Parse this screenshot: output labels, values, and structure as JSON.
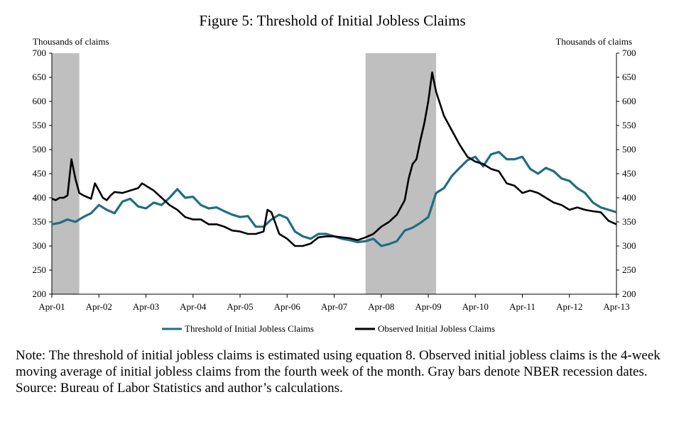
{
  "chart_data": {
    "type": "line",
    "title": "Figure 5: Threshold of Initial Jobless Claims",
    "ylabel_left": "Thousands of claims",
    "ylabel_right": "Thousands of claims",
    "ylim": [
      200,
      700
    ],
    "yticks": [
      200,
      250,
      300,
      350,
      400,
      450,
      500,
      550,
      600,
      650,
      700
    ],
    "xlim": [
      "2001-04",
      "2013-04"
    ],
    "xticks": [
      "Apr-01",
      "Apr-02",
      "Apr-03",
      "Apr-04",
      "Apr-05",
      "Apr-06",
      "Apr-07",
      "Apr-08",
      "Apr-09",
      "Apr-10",
      "Apr-11",
      "Apr-12",
      "Apr-13"
    ],
    "recessions": [
      {
        "start": "2001-04",
        "end": "2001-11"
      },
      {
        "start": "2007-12",
        "end": "2009-06"
      }
    ],
    "legend_position": "bottom",
    "series": [
      {
        "name": "Threshold of Initial Jobless Claims",
        "color": "#1f6e84",
        "x": [
          "2001-04",
          "2001-06",
          "2001-08",
          "2001-10",
          "2001-12",
          "2002-02",
          "2002-04",
          "2002-06",
          "2002-08",
          "2002-10",
          "2002-12",
          "2003-02",
          "2003-04",
          "2003-06",
          "2003-08",
          "2003-10",
          "2003-12",
          "2004-02",
          "2004-04",
          "2004-06",
          "2004-08",
          "2004-10",
          "2004-12",
          "2005-02",
          "2005-04",
          "2005-06",
          "2005-08",
          "2005-10",
          "2005-12",
          "2006-02",
          "2006-04",
          "2006-06",
          "2006-08",
          "2006-10",
          "2006-12",
          "2007-02",
          "2007-04",
          "2007-06",
          "2007-08",
          "2007-10",
          "2007-12",
          "2008-02",
          "2008-04",
          "2008-06",
          "2008-08",
          "2008-10",
          "2008-12",
          "2009-02",
          "2009-04",
          "2009-06",
          "2009-08",
          "2009-10",
          "2009-12",
          "2010-02",
          "2010-04",
          "2010-06",
          "2010-08",
          "2010-10",
          "2010-12",
          "2011-02",
          "2011-04",
          "2011-06",
          "2011-08",
          "2011-10",
          "2011-12",
          "2012-02",
          "2012-04",
          "2012-06",
          "2012-08",
          "2012-10",
          "2012-12",
          "2013-02",
          "2013-04"
        ],
        "values": [
          345,
          348,
          355,
          350,
          360,
          368,
          385,
          375,
          368,
          392,
          398,
          382,
          378,
          390,
          385,
          400,
          418,
          400,
          402,
          385,
          378,
          380,
          372,
          365,
          360,
          362,
          340,
          340,
          355,
          365,
          358,
          330,
          320,
          315,
          325,
          325,
          320,
          315,
          312,
          308,
          310,
          315,
          300,
          304,
          310,
          332,
          338,
          348,
          360,
          410,
          420,
          445,
          462,
          478,
          485,
          465,
          490,
          495,
          480,
          480,
          485,
          460,
          450,
          462,
          455,
          440,
          435,
          420,
          410,
          390,
          380,
          375,
          370
        ]
      },
      {
        "name": "Observed Initial Jobless Claims",
        "color": "#000000",
        "x": [
          "2001-04",
          "2001-05",
          "2001-06",
          "2001-07",
          "2001-08",
          "2001-09",
          "2001-10",
          "2001-11",
          "2001-12",
          "2002-02",
          "2002-03",
          "2002-04",
          "2002-05",
          "2002-06",
          "2002-07",
          "2002-08",
          "2002-10",
          "2002-12",
          "2003-02",
          "2003-03",
          "2003-04",
          "2003-06",
          "2003-08",
          "2003-10",
          "2003-12",
          "2004-02",
          "2004-04",
          "2004-06",
          "2004-08",
          "2004-10",
          "2004-12",
          "2005-02",
          "2005-04",
          "2005-06",
          "2005-08",
          "2005-10",
          "2005-11",
          "2005-12",
          "2006-02",
          "2006-04",
          "2006-06",
          "2006-08",
          "2006-10",
          "2006-12",
          "2007-02",
          "2007-04",
          "2007-06",
          "2007-08",
          "2007-10",
          "2007-12",
          "2008-02",
          "2008-04",
          "2008-06",
          "2008-08",
          "2008-10",
          "2008-11",
          "2008-12",
          "2009-01",
          "2009-02",
          "2009-03",
          "2009-04",
          "2009-05",
          "2009-06",
          "2009-08",
          "2009-10",
          "2009-12",
          "2010-02",
          "2010-04",
          "2010-06",
          "2010-08",
          "2010-10",
          "2010-12",
          "2011-02",
          "2011-04",
          "2011-06",
          "2011-08",
          "2011-10",
          "2011-12",
          "2012-02",
          "2012-04",
          "2012-06",
          "2012-08",
          "2012-10",
          "2012-12",
          "2013-02",
          "2013-04"
        ],
        "values": [
          398,
          395,
          400,
          400,
          405,
          480,
          440,
          410,
          405,
          398,
          430,
          415,
          400,
          395,
          405,
          412,
          410,
          415,
          420,
          430,
          425,
          415,
          400,
          385,
          375,
          360,
          355,
          355,
          345,
          345,
          340,
          332,
          330,
          325,
          325,
          330,
          375,
          370,
          325,
          315,
          300,
          300,
          305,
          318,
          320,
          320,
          318,
          316,
          312,
          318,
          325,
          340,
          350,
          365,
          395,
          440,
          470,
          480,
          520,
          555,
          600,
          660,
          620,
          570,
          540,
          510,
          485,
          475,
          470,
          460,
          455,
          430,
          425,
          410,
          415,
          410,
          400,
          390,
          385,
          375,
          380,
          375,
          372,
          370,
          352,
          345
        ]
      }
    ]
  },
  "note": {
    "text": "Note: The threshold of initial jobless claims is estimated using equation 8. Observed initial jobless claims is the 4-week moving average of initial jobless claims from the fourth week of the month. Gray bars denote NBER recession dates.",
    "source": "Source: Bureau of Labor Statistics and author’s calculations."
  }
}
